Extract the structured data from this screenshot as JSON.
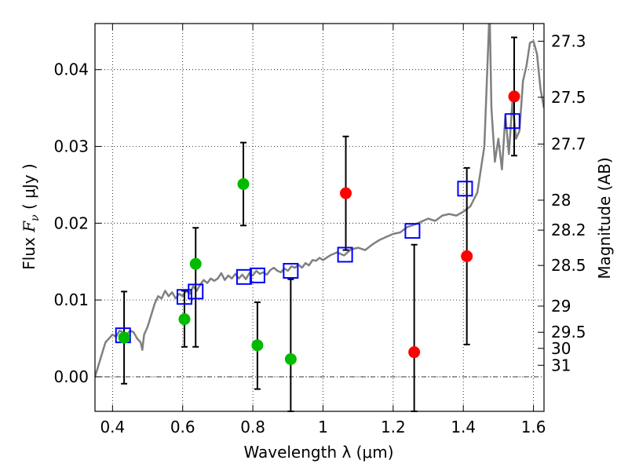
{
  "chart_data": {
    "type": "scatter",
    "xlabel": "Wavelength  λ (μm)",
    "ylabel_text": "Flux  ",
    "ylabel_math": "F",
    "ylabel_sub": "ν",
    "ylabel_unit": "  ( μJy )",
    "y2label": "Magnitude (AB)",
    "xlim": [
      0.35,
      1.63
    ],
    "ylim": [
      -0.0045,
      0.046
    ],
    "x_ticks": [
      0.4,
      0.6,
      0.8,
      1.0,
      1.2,
      1.4,
      1.6
    ],
    "x_tick_labels": [
      "0.4",
      "0.6",
      "0.8",
      "1",
      "1.2",
      "1.4",
      "1.6"
    ],
    "y_ticks": [
      0.0,
      0.01,
      0.02,
      0.03,
      0.04
    ],
    "y_tick_labels": [
      "0.00",
      "0.01",
      "0.02",
      "0.03",
      "0.04"
    ],
    "mag_ticks": [
      {
        "label": "27.3",
        "flux": 0.0437
      },
      {
        "label": "27.5",
        "flux": 0.0364
      },
      {
        "label": "27.7",
        "flux": 0.0303
      },
      {
        "label": "28",
        "flux": 0.023
      },
      {
        "label": "28.2",
        "flux": 0.0191
      },
      {
        "label": "28.5",
        "flux": 0.0145
      },
      {
        "label": "29",
        "flux": 0.0092
      },
      {
        "label": "29.5",
        "flux": 0.0058
      },
      {
        "label": "30",
        "flux": 0.0037
      },
      {
        "label": "31",
        "flux": 0.0015
      }
    ],
    "grid": true,
    "zero_line": true,
    "colors": {
      "model": "#808080",
      "template_markers": "#0000ff",
      "green_points": "#00bb00",
      "red_points": "#ff0000",
      "errorbars": "#000000"
    },
    "series": [
      {
        "kind": "line",
        "x": [
          0.35,
          0.36,
          0.37,
          0.38,
          0.39,
          0.4,
          0.41,
          0.42,
          0.43,
          0.44,
          0.45,
          0.46,
          0.47,
          0.48,
          0.485,
          0.49,
          0.5,
          0.51,
          0.52,
          0.53,
          0.54,
          0.55,
          0.56,
          0.57,
          0.58,
          0.59,
          0.6,
          0.61,
          0.62,
          0.63,
          0.64,
          0.65,
          0.66,
          0.67,
          0.68,
          0.69,
          0.7,
          0.71,
          0.72,
          0.73,
          0.74,
          0.75,
          0.76,
          0.77,
          0.78,
          0.79,
          0.8,
          0.81,
          0.82,
          0.83,
          0.84,
          0.85,
          0.86,
          0.87,
          0.88,
          0.89,
          0.9,
          0.91,
          0.92,
          0.93,
          0.94,
          0.95,
          0.96,
          0.97,
          0.98,
          0.99,
          1.0,
          1.02,
          1.04,
          1.06,
          1.08,
          1.1,
          1.12,
          1.14,
          1.16,
          1.18,
          1.2,
          1.22,
          1.24,
          1.26,
          1.28,
          1.3,
          1.32,
          1.34,
          1.36,
          1.38,
          1.4,
          1.42,
          1.44,
          1.46,
          1.47,
          1.475,
          1.48,
          1.49,
          1.5,
          1.51,
          1.52,
          1.53,
          1.54,
          1.55,
          1.56,
          1.57,
          1.58,
          1.59,
          1.6,
          1.61,
          1.62,
          1.63
        ],
        "values": [
          0.0,
          0.0015,
          0.003,
          0.0045,
          0.005,
          0.0055,
          0.0052,
          0.006,
          0.0058,
          0.0055,
          0.006,
          0.0058,
          0.005,
          0.0045,
          0.0035,
          0.0055,
          0.0065,
          0.008,
          0.0095,
          0.0105,
          0.0102,
          0.0112,
          0.0105,
          0.011,
          0.0102,
          0.0108,
          0.0105,
          0.0112,
          0.0108,
          0.0118,
          0.0112,
          0.012,
          0.0126,
          0.0122,
          0.0128,
          0.0125,
          0.0128,
          0.0135,
          0.0126,
          0.0132,
          0.0128,
          0.0134,
          0.0128,
          0.0133,
          0.0127,
          0.0135,
          0.0132,
          0.0138,
          0.0134,
          0.0136,
          0.0133,
          0.0139,
          0.0142,
          0.0138,
          0.0136,
          0.0141,
          0.0138,
          0.0144,
          0.0142,
          0.0146,
          0.0142,
          0.0148,
          0.0145,
          0.0152,
          0.0151,
          0.0155,
          0.0152,
          0.0158,
          0.0162,
          0.0158,
          0.0166,
          0.0168,
          0.0165,
          0.0172,
          0.0178,
          0.0182,
          0.0186,
          0.0188,
          0.0195,
          0.0198,
          0.0202,
          0.0206,
          0.0203,
          0.021,
          0.0212,
          0.021,
          0.0215,
          0.0222,
          0.024,
          0.03,
          0.042,
          0.048,
          0.035,
          0.028,
          0.031,
          0.027,
          0.034,
          0.029,
          0.036,
          0.031,
          0.032,
          0.0385,
          0.0405,
          0.0435,
          0.0437,
          0.042,
          0.0375,
          0.035
        ]
      },
      {
        "kind": "template_markers",
        "x": [
          0.43,
          0.605,
          0.637,
          0.775,
          0.813,
          0.908,
          1.063,
          1.255,
          1.405,
          1.54
        ],
        "values": [
          0.0054,
          0.0104,
          0.0111,
          0.013,
          0.0132,
          0.0138,
          0.0159,
          0.019,
          0.0245,
          0.0333
        ]
      },
      {
        "kind": "green_points",
        "x": [
          0.433,
          0.605,
          0.637,
          0.773,
          0.813,
          0.908
        ],
        "values": [
          0.0051,
          0.0075,
          0.0147,
          0.0251,
          0.0041,
          0.0023
        ],
        "err_low": [
          null,
          0.0039,
          0.0039,
          0.0197,
          -0.0016,
          -0.0045
        ],
        "err_high": [
          null,
          0.0112,
          0.0194,
          0.0305,
          0.0097,
          0.0127
        ]
      },
      {
        "kind": "red_points",
        "x": [
          1.065,
          1.26,
          1.41,
          1.545
        ],
        "values": [
          0.0239,
          0.0032,
          0.0157,
          0.0365
        ],
        "err_low": [
          0.0165,
          -0.0045,
          0.0042,
          0.0288
        ],
        "err_high": [
          0.0313,
          0.0172,
          0.0272,
          0.0442
        ]
      },
      {
        "kind": "extra_errorbar",
        "x": [
          0.433
        ],
        "err_low": [
          -0.0009
        ],
        "err_high": [
          0.0111
        ]
      }
    ]
  }
}
